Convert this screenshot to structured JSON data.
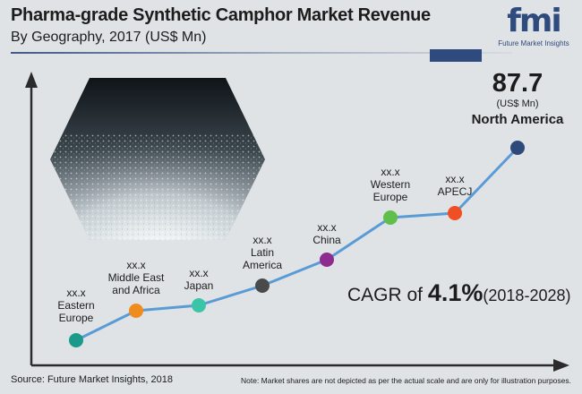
{
  "header": {
    "title": "Pharma-grade Synthetic Camphor Market Revenue",
    "subtitle": "By Geography, 2017 (US$ Mn)"
  },
  "logo": {
    "text": "fmi",
    "tagline": "Future Market Insights"
  },
  "colors": {
    "title_rule": "#2f4a7c",
    "line": "#5b9bd5",
    "axis": "#2b2b2b"
  },
  "chart_data": {
    "type": "line",
    "title": "Pharma-grade Synthetic Camphor Market Revenue",
    "subtitle": "By Geography, 2017 (US$ Mn)",
    "categories": [
      "Eastern Europe",
      "Middle East and Africa",
      "Japan",
      "Latin America",
      "China",
      "Western Europe",
      "APECJ",
      "North America"
    ],
    "points": [
      {
        "region": "Eastern Europe",
        "label_lines": [
          "Eastern",
          "Europe"
        ],
        "value_text": "xx.x",
        "color": "#1a9a8a"
      },
      {
        "region": "Middle East and Africa",
        "label_lines": [
          "Middle East",
          "and Africa"
        ],
        "value_text": "xx.x",
        "color": "#f08c1e"
      },
      {
        "region": "Japan",
        "label_lines": [
          "Japan"
        ],
        "value_text": "xx.x",
        "color": "#3cc4a8"
      },
      {
        "region": "Latin America",
        "label_lines": [
          "Latin",
          "America"
        ],
        "value_text": "xx.x",
        "color": "#4a4a4a"
      },
      {
        "region": "China",
        "label_lines": [
          "China"
        ],
        "value_text": "xx.x",
        "color": "#8e2b8f"
      },
      {
        "region": "Western Europe",
        "label_lines": [
          "Western",
          "Europe"
        ],
        "value_text": "xx.x",
        "color": "#5fbf4a"
      },
      {
        "region": "APECJ",
        "label_lines": [
          "APECJ"
        ],
        "value_text": "xx.x",
        "color": "#f04e23"
      },
      {
        "region": "North America",
        "label_lines": [
          "North America"
        ],
        "value_text": "87.7",
        "unit": "(US$ Mn)",
        "color": "#2e4a7a"
      }
    ],
    "highlight": {
      "value": 87.7,
      "unit": "(US$ Mn)",
      "region": "North America"
    },
    "cagr": {
      "prefix": "CAGR of ",
      "value": "4.1%",
      "period": "(2018-2028)"
    },
    "grid": false,
    "legend": "none"
  },
  "footer": {
    "source": "Source: Future Market Insights, 2018",
    "note": "Note: Market shares are not depicted as per the actual scale and are only for illustration purposes."
  }
}
